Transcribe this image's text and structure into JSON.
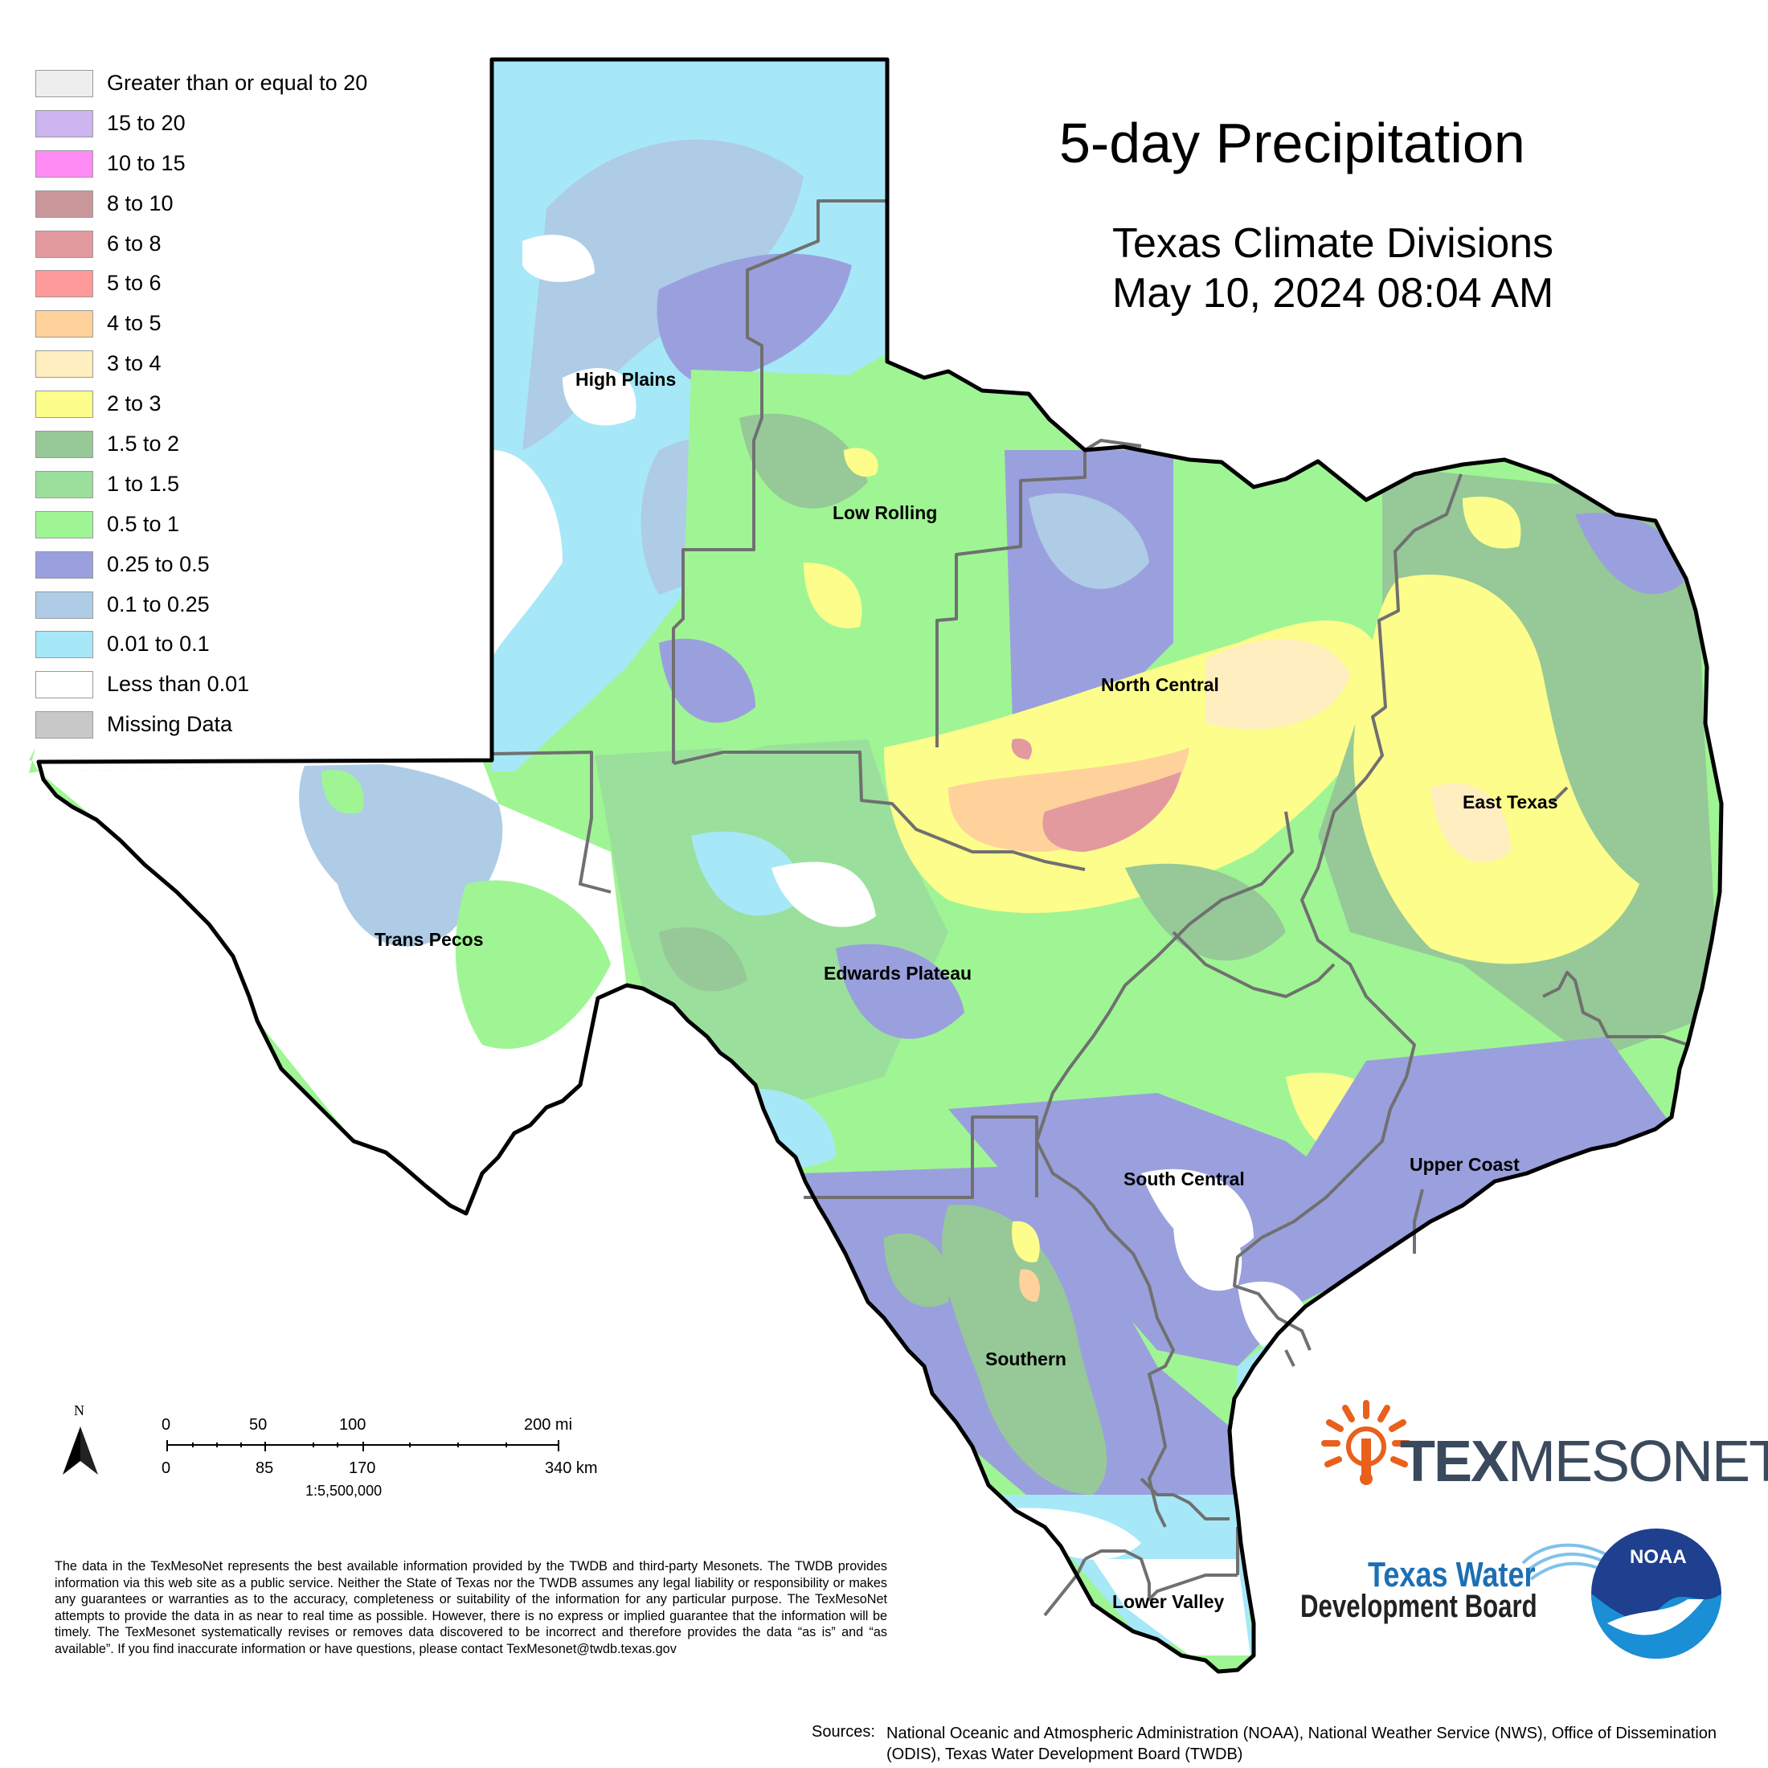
{
  "title": "5-day Precipitation",
  "subtitle_line1": "Texas Climate Divisions",
  "subtitle_line2": "May 10, 2024 08:04 AM",
  "legend": [
    {
      "label": "Greater than or equal to 20",
      "color": "#eeeeee"
    },
    {
      "label": "15 to 20",
      "color": "#cdb5f0"
    },
    {
      "label": "10 to 15",
      "color": "#ff8cf5"
    },
    {
      "label": "8 to 10",
      "color": "#c9979a"
    },
    {
      "label": "6 to 8",
      "color": "#e29a9e"
    },
    {
      "label": "5 to 6",
      "color": "#ff9a9a"
    },
    {
      "label": "4 to 5",
      "color": "#ffd29b"
    },
    {
      "label": "3 to 4",
      "color": "#ffeec0"
    },
    {
      "label": "2 to 3",
      "color": "#fdfd8c"
    },
    {
      "label": "1.5 to 2",
      "color": "#96c997"
    },
    {
      "label": "1 to 1.5",
      "color": "#9ae09c"
    },
    {
      "label": "0.5 to 1",
      "color": "#9ff594"
    },
    {
      "label": "0.25 to 0.5",
      "color": "#9aa0dd"
    },
    {
      "label": "0.1 to 0.25",
      "color": "#aecce6"
    },
    {
      "label": "0.01 to 0.1",
      "color": "#a6e8f8"
    },
    {
      "label": "Less than 0.01",
      "color": "#ffffff"
    },
    {
      "label": "Missing Data",
      "color": "#c8c8c8"
    }
  ],
  "regions": {
    "high_plains": "High Plains",
    "low_rolling": "Low Rolling",
    "north_central": "North Central",
    "east_texas": "East Texas",
    "trans_pecos": "Trans Pecos",
    "edwards_plateau": "Edwards Plateau",
    "south_central": "South Central",
    "upper_coast": "Upper Coast",
    "southern": "Southern",
    "lower_valley": "Lower Valley"
  },
  "scale_bar": {
    "north": "N",
    "mi_ticks": [
      "0",
      "50",
      "100",
      "200 mi"
    ],
    "km_ticks": [
      "0",
      "85",
      "170",
      "340 km"
    ],
    "ratio": "1:5,500,000"
  },
  "disclaimer": "The data in the TexMesoNet represents the best available information provided by the TWDB and third-party Mesonets. The TWDB provides information via this web site as a public service. Neither the State of Texas nor the TWDB assumes any legal liability or responsibility or makes any guarantees or warranties as to the accuracy, completeness or suitability of the information for any particular purpose. The TexMesoNet attempts to provide the data in as near to real time as possible. However, there is no express or implied guarantee that the information will be timely. The TexMesonet systematically revises or removes data discovered to be incorrect and therefore provides the data “as is” and “as available”. If you find inaccurate information or have questions, please contact TexMesonet@twdb.texas.gov",
  "sources_label": "Sources:",
  "sources_text": "National Oceanic and Atmospheric Administration (NOAA), National Weather Service (NWS), Office of Dissemination (ODIS), Texas Water Development Board (TWDB)",
  "logos": {
    "texmesonet_a": "TEX",
    "texmesonet_b": "MESONET",
    "twdb_line1": "Texas Water",
    "twdb_line2": "Development Board",
    "noaa": "NOAA"
  },
  "colors": {
    "texmesonet_orange": "#e8601c",
    "texmesonet_navy": "#3a4a5c",
    "twdb_blue": "#1c6fb4",
    "noaa_blue": "#1a8fd6",
    "noaa_navy": "#1f3f8f",
    "division_line": "#707070",
    "state_outline": "#000000"
  }
}
